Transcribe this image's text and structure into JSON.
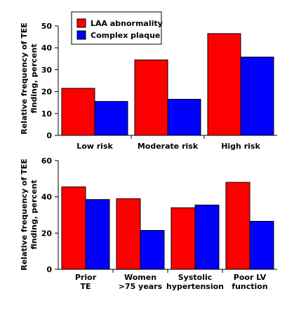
{
  "colors": {
    "laa": "#ff0000",
    "plaque": "#0000ff",
    "axis": "#000000"
  },
  "legend": [
    {
      "label": "LAA abnormality",
      "color": "#ff0000"
    },
    {
      "label": "Complex plaque",
      "color": "#0000ff"
    }
  ],
  "chart_data": [
    {
      "type": "bar",
      "ylabel_lines": [
        "Relative frequency of TEE",
        "finding, percent"
      ],
      "ylim": [
        0,
        50
      ],
      "yticks": [
        0,
        10,
        20,
        30,
        40,
        50
      ],
      "grid": false,
      "legend_position": "top-left",
      "categories": [
        {
          "lines": [
            "Low risk"
          ]
        },
        {
          "lines": [
            "Moderate risk"
          ]
        },
        {
          "lines": [
            "High risk"
          ]
        }
      ],
      "series": [
        {
          "name": "LAA abnormality",
          "values": [
            21.5,
            34.5,
            46.5
          ]
        },
        {
          "name": "Complex plaque",
          "values": [
            15.5,
            16.5,
            35.8
          ]
        }
      ]
    },
    {
      "type": "bar",
      "ylabel_lines": [
        "Relative frequency of TEE",
        "finding, percent"
      ],
      "ylim": [
        0,
        60
      ],
      "yticks": [
        0,
        20,
        40,
        60
      ],
      "grid": false,
      "categories": [
        {
          "lines": [
            "Prior",
            "TE"
          ]
        },
        {
          "lines": [
            "Women",
            ">75 years"
          ]
        },
        {
          "lines": [
            "Systolic",
            "hypertension"
          ]
        },
        {
          "lines": [
            "Poor LV",
            "function"
          ]
        }
      ],
      "series": [
        {
          "name": "LAA abnormality",
          "values": [
            45.5,
            39.0,
            34.0,
            48.0
          ]
        },
        {
          "name": "Complex plaque",
          "values": [
            38.5,
            21.5,
            35.5,
            26.5
          ]
        }
      ]
    }
  ]
}
